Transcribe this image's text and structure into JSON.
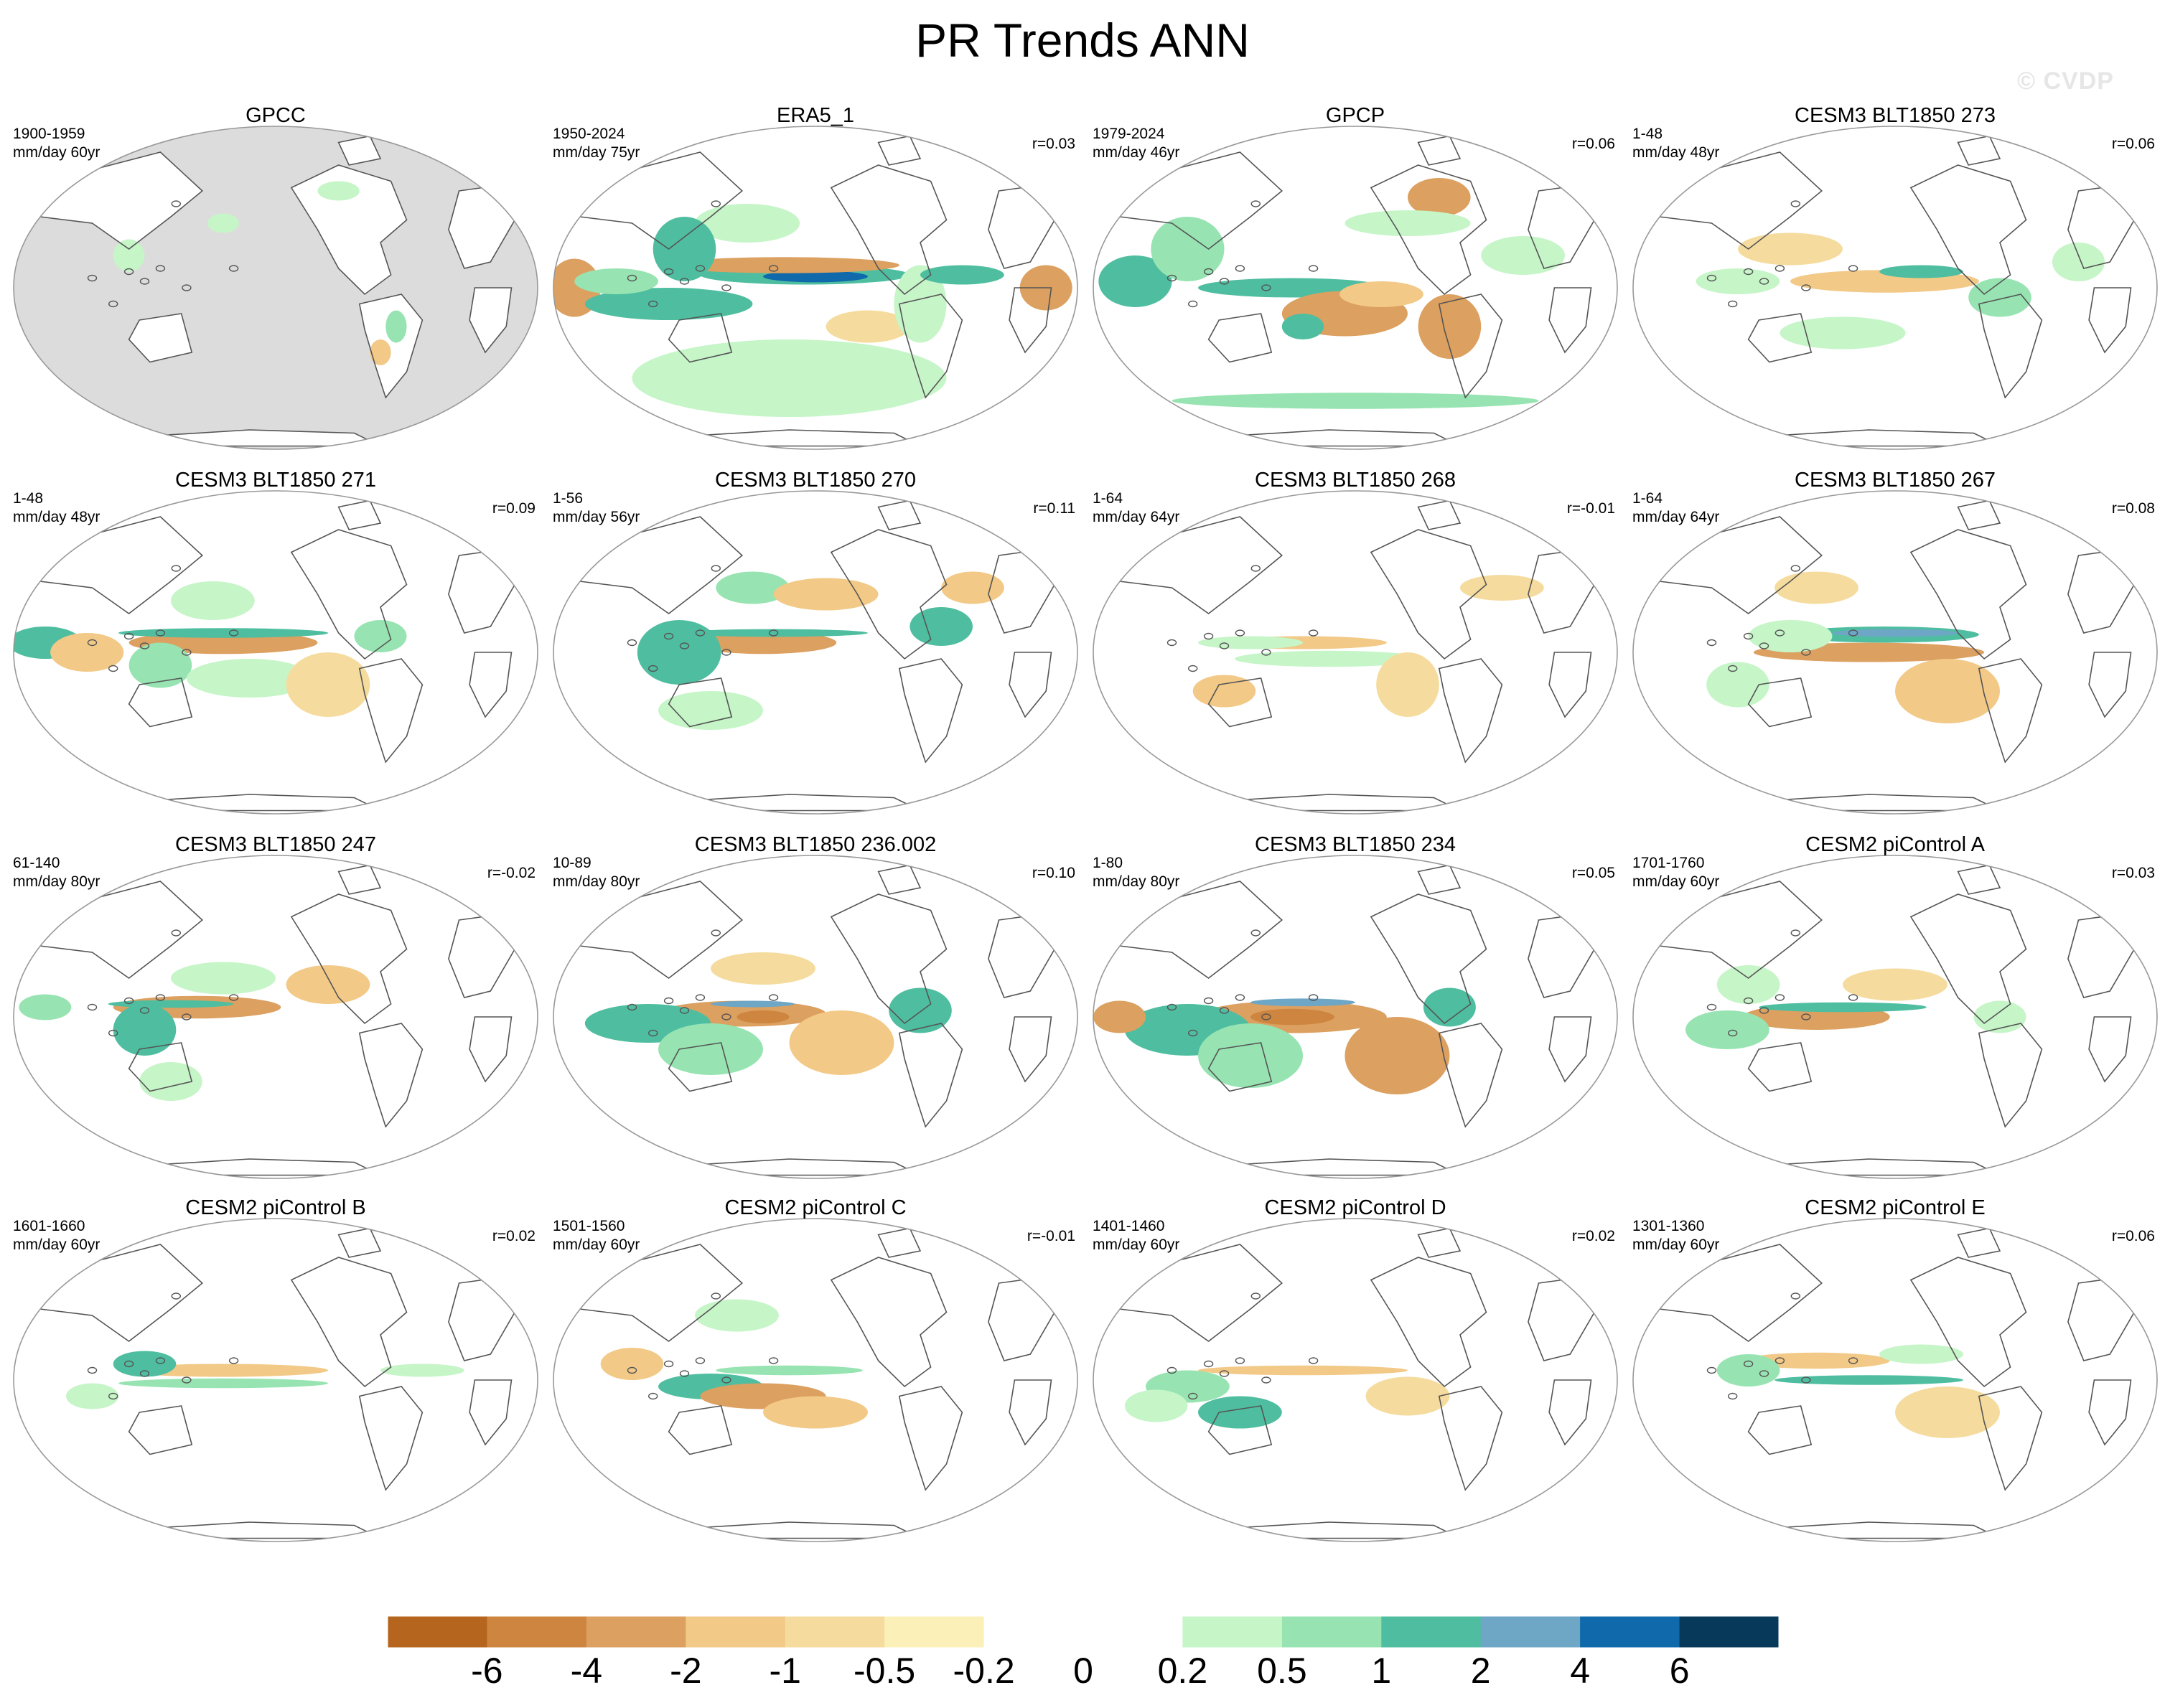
{
  "title": "PR Trends ANN",
  "watermark": "© CVDP",
  "colors": {
    "land_mask": "#dcdcdc",
    "coast": "#555555",
    "frame": "#999999",
    "palette": [
      "#b5651d",
      "#cd853f",
      "#dca060",
      "#f2c987",
      "#f5dc9e",
      "#fbf0b8",
      "#ffffff",
      "#ffffff",
      "#c6f5c8",
      "#97e4b2",
      "#4fbea0",
      "#6ea6c6",
      "#1069aa",
      "#06395a"
    ]
  },
  "colorbar": {
    "labels": [
      "-6",
      "-4",
      "-2",
      "-1",
      "-0.5",
      "-0.2",
      "0",
      "0.2",
      "0.5",
      "1",
      "2",
      "4",
      "6"
    ]
  },
  "panels": [
    {
      "title": "GPCC",
      "period": "1900-1959",
      "units": "mm/day 60yr",
      "corr": "",
      "masked": true
    },
    {
      "title": "ERA5_1",
      "period": "1950-2024",
      "units": "mm/day 75yr",
      "corr": "r=0.03"
    },
    {
      "title": "GPCP",
      "period": "1979-2024",
      "units": "mm/day 46yr",
      "corr": "r=0.06"
    },
    {
      "title": "CESM3 BLT1850 273",
      "period": "1-48",
      "units": "mm/day 48yr",
      "corr": "r=0.06"
    },
    {
      "title": "CESM3 BLT1850 271",
      "period": "1-48",
      "units": "mm/day 48yr",
      "corr": "r=0.09"
    },
    {
      "title": "CESM3 BLT1850 270",
      "period": "1-56",
      "units": "mm/day 56yr",
      "corr": "r=0.11"
    },
    {
      "title": "CESM3 BLT1850 268",
      "period": "1-64",
      "units": "mm/day 64yr",
      "corr": "r=-0.01"
    },
    {
      "title": "CESM3 BLT1850 267",
      "period": "1-64",
      "units": "mm/day 64yr",
      "corr": "r=0.08"
    },
    {
      "title": "CESM3 BLT1850 247",
      "period": "61-140",
      "units": "mm/day 80yr",
      "corr": "r=-0.02"
    },
    {
      "title": "CESM3 BLT1850 236.002",
      "period": "10-89",
      "units": "mm/day 80yr",
      "corr": "r=0.10"
    },
    {
      "title": "CESM3 BLT1850 234",
      "period": "1-80",
      "units": "mm/day 80yr",
      "corr": "r=0.05"
    },
    {
      "title": "CESM2 piControl A",
      "period": "1701-1760",
      "units": "mm/day 60yr",
      "corr": "r=0.03"
    },
    {
      "title": "CESM2 piControl B",
      "period": "1601-1660",
      "units": "mm/day 60yr",
      "corr": "r=0.02"
    },
    {
      "title": "CESM2 piControl C",
      "period": "1501-1560",
      "units": "mm/day 60yr",
      "corr": "r=-0.01"
    },
    {
      "title": "CESM2 piControl D",
      "period": "1401-1460",
      "units": "mm/day 60yr",
      "corr": "r=0.02"
    },
    {
      "title": "CESM2 piControl E",
      "period": "1301-1360",
      "units": "mm/day 60yr",
      "corr": "r=0.06"
    }
  ]
}
